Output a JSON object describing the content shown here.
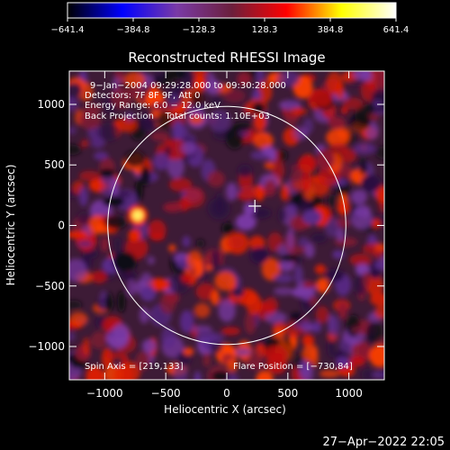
{
  "colorbar": {
    "tick_labels": [
      "−641.4",
      "−384.8",
      "−128.3",
      "128.3",
      "384.8",
      "641.4"
    ],
    "range": [
      -641.4,
      641.4
    ],
    "colormap": [
      "#000000",
      "#0000ff",
      "#7a3aa6",
      "#6b1f3c",
      "#ff0000",
      "#ffff00",
      "#ffffff"
    ]
  },
  "chart_data": {
    "type": "heatmap",
    "title": "Reconstructed RHESSI Image",
    "xlabel": "Heliocentric X (arcsec)",
    "ylabel": "Heliocentric Y (arcsec)",
    "xlim": [
      -1290,
      1290
    ],
    "ylim": [
      -1275,
      1275
    ],
    "x_ticks": [
      -1000,
      -500,
      0,
      500,
      1000
    ],
    "y_ticks": [
      -1000,
      -500,
      0,
      500,
      1000
    ],
    "x_tick_labels": [
      "−1000",
      "−500",
      "0",
      "500",
      "1000"
    ],
    "y_tick_labels": [
      "−1000",
      "−500",
      "0",
      "500",
      "1000"
    ],
    "solar_limb": {
      "center": [
        0,
        0
      ],
      "radius": 975
    },
    "marker": {
      "x": 230,
      "y": 160
    },
    "bright_source": {
      "x": -730,
      "y": 84
    },
    "info_lines": [
      "9−Jan−2004 09:29:28.000 to 09:30:28.000",
      "Detectors: 7F 8F 9F, Att 0",
      "Energy Range: 6.0 − 12.0 keV",
      "Back Projection    Total counts: 1.10E+03"
    ],
    "spin_axis": "Spin Axis = [219,133]",
    "flare_position": "Flare Position = [−730,84]"
  },
  "timestamp": "27−Apr−2022 22:05"
}
